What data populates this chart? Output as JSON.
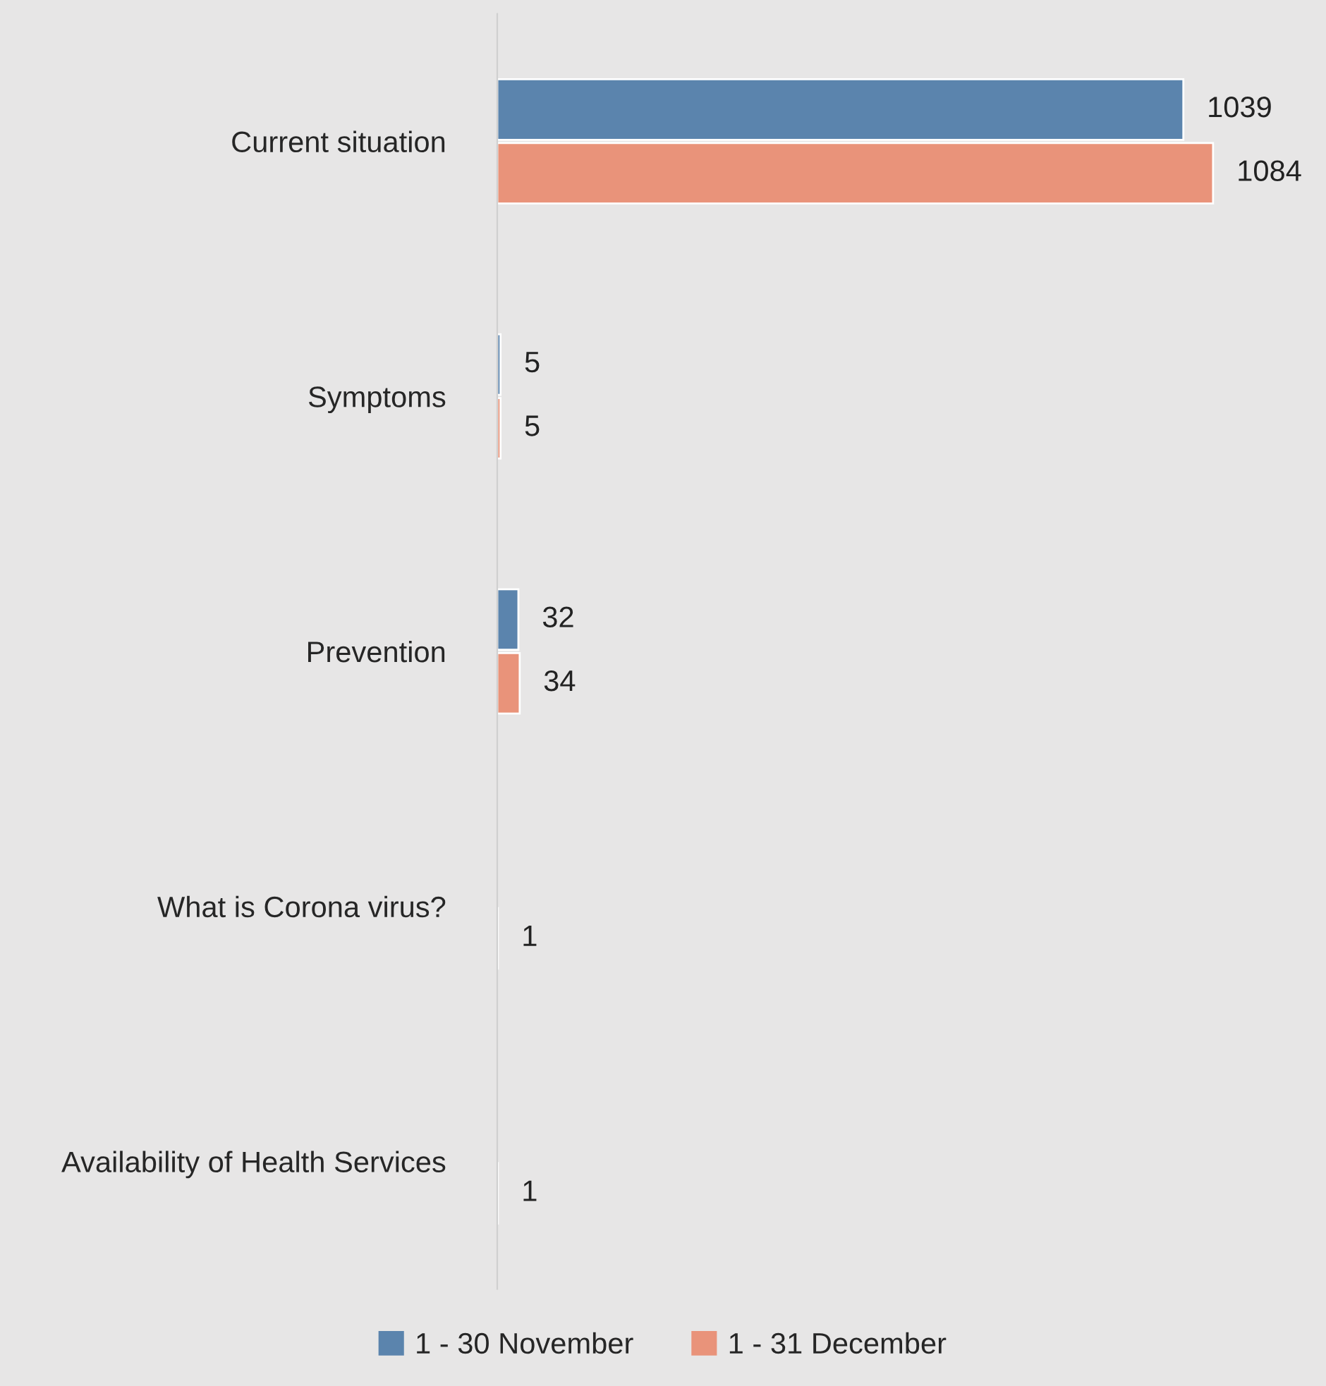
{
  "chart_data": {
    "type": "bar",
    "orientation": "horizontal",
    "categories": [
      "Current situation",
      "Symptoms",
      "Prevention",
      "What is Corona virus?",
      "Availability of Health Services"
    ],
    "series": [
      {
        "name": "1 - 30 November",
        "color": "#5b84ad",
        "values": [
          1039,
          5,
          32,
          null,
          null
        ]
      },
      {
        "name": "1 - 31 December",
        "color": "#e9937a",
        "values": [
          1084,
          5,
          34,
          1,
          1
        ]
      }
    ],
    "data_labels": true,
    "legend": "bottom",
    "grid": false,
    "tick_labels": "y"
  }
}
